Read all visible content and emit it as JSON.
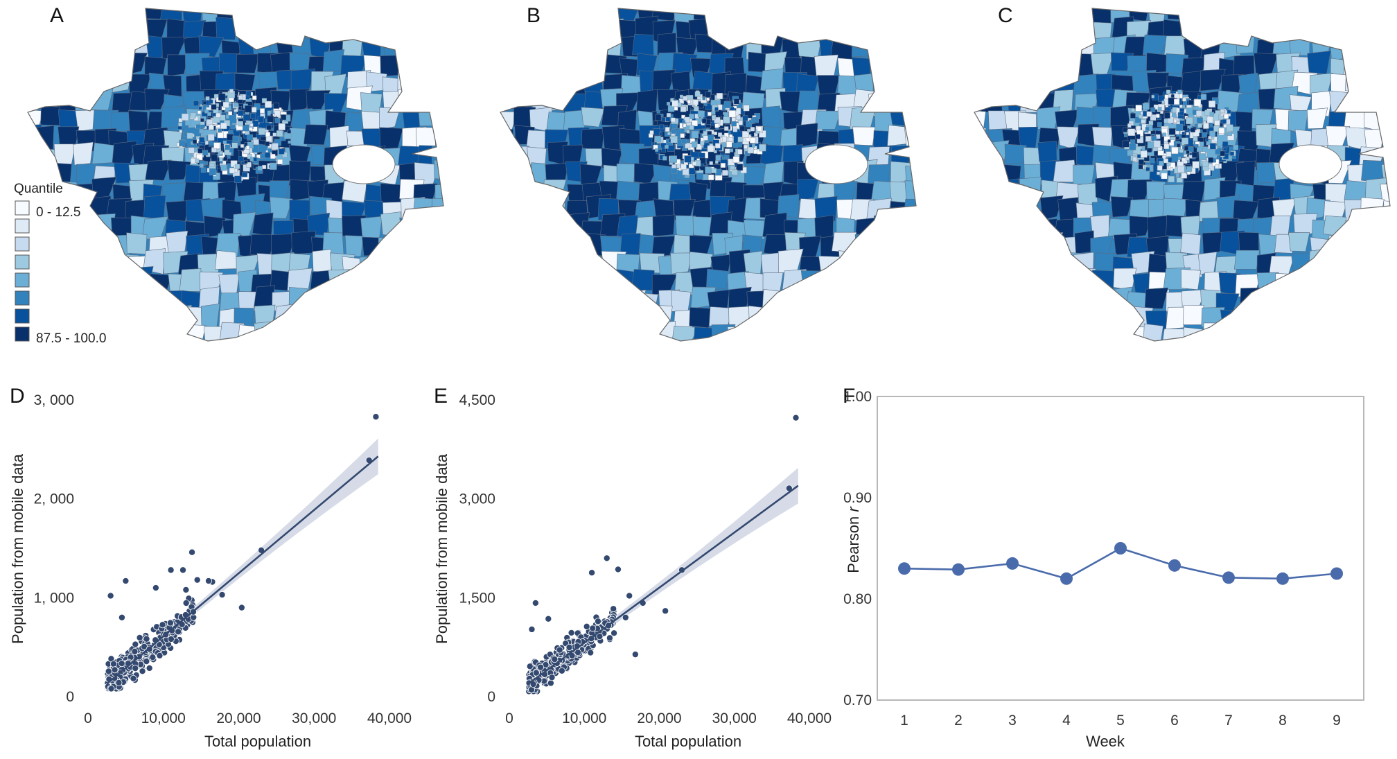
{
  "maps": {
    "labels": [
      "A",
      "B",
      "C"
    ],
    "legend": {
      "title": "Quantile",
      "low_label": "0 - 12.5",
      "high_label": "87.5 - 100.0",
      "colors": [
        "#f7fbff",
        "#deebf7",
        "#c6dbef",
        "#9ecae1",
        "#6baed6",
        "#3182bd",
        "#08519c",
        "#08306b"
      ]
    }
  },
  "chart_data": [
    {
      "panel": "D",
      "type": "scatter",
      "xlabel": "Total population",
      "ylabel": "Population from mobile data",
      "xlim": [
        0,
        40000
      ],
      "ylim": [
        0,
        3000
      ],
      "x_ticks": [
        "0",
        "10,000",
        "20,000",
        "30,000",
        "40,000"
      ],
      "y_ticks": [
        "0",
        "1, 000",
        "2, 000",
        "3, 000"
      ],
      "y_tick_values": [
        0,
        1000,
        2000,
        3000
      ],
      "fit_line": {
        "x": [
          2500,
          38500
        ],
        "y": [
          130,
          2430
        ]
      },
      "outliers": [
        {
          "x": 38200,
          "y": 2830
        },
        {
          "x": 37300,
          "y": 2390
        },
        {
          "x": 23000,
          "y": 1480
        },
        {
          "x": 17800,
          "y": 1030
        },
        {
          "x": 20400,
          "y": 900
        },
        {
          "x": 16500,
          "y": 1160
        },
        {
          "x": 16000,
          "y": 1170
        },
        {
          "x": 13800,
          "y": 1460
        },
        {
          "x": 11000,
          "y": 1280
        },
        {
          "x": 12600,
          "y": 1280
        },
        {
          "x": 9000,
          "y": 1100
        },
        {
          "x": 5000,
          "y": 1170
        },
        {
          "x": 3000,
          "y": 1020
        },
        {
          "x": 4500,
          "y": 800
        },
        {
          "x": 14500,
          "y": 1180
        },
        {
          "x": 13000,
          "y": 1080
        }
      ],
      "cloud": {
        "x_range": [
          2600,
          14000
        ],
        "slope": 0.064,
        "intercept": -40,
        "spread": 170,
        "count": 320
      }
    },
    {
      "panel": "E",
      "type": "scatter",
      "xlabel": "Total population",
      "ylabel": "Population from mobile data",
      "xlim": [
        0,
        40000
      ],
      "ylim": [
        0,
        4500
      ],
      "x_ticks": [
        "0",
        "10,000",
        "20,000",
        "30,000",
        "40,000"
      ],
      "y_ticks": [
        "0",
        "1,500",
        "3,000",
        "4,500"
      ],
      "y_tick_values": [
        0,
        1500,
        3000,
        4500
      ],
      "fit_line": {
        "x": [
          2500,
          38500
        ],
        "y": [
          190,
          3200
        ]
      },
      "outliers": [
        {
          "x": 38200,
          "y": 4230
        },
        {
          "x": 37300,
          "y": 3160
        },
        {
          "x": 23000,
          "y": 1920
        },
        {
          "x": 17800,
          "y": 1420
        },
        {
          "x": 20800,
          "y": 1300
        },
        {
          "x": 16800,
          "y": 640
        },
        {
          "x": 13000,
          "y": 2100
        },
        {
          "x": 14500,
          "y": 1930
        },
        {
          "x": 11000,
          "y": 1880
        },
        {
          "x": 16000,
          "y": 1530
        },
        {
          "x": 3500,
          "y": 1420
        },
        {
          "x": 3000,
          "y": 1020
        },
        {
          "x": 5200,
          "y": 1180
        },
        {
          "x": 15500,
          "y": 1200
        }
      ],
      "cloud": {
        "x_range": [
          2600,
          14000
        ],
        "slope": 0.085,
        "intercept": -20,
        "spread": 220,
        "count": 320
      }
    },
    {
      "panel": "F",
      "type": "line",
      "xlabel": "Week",
      "ylabel": "Pearson r",
      "x": [
        1,
        2,
        3,
        4,
        5,
        6,
        7,
        8,
        9
      ],
      "y": [
        0.83,
        0.829,
        0.835,
        0.82,
        0.85,
        0.833,
        0.821,
        0.82,
        0.825
      ],
      "xlim": [
        0.5,
        9.5
      ],
      "ylim": [
        0.7,
        1.0
      ],
      "y_ticks": [
        "0.70",
        "0.80",
        "0.90",
        "1.00"
      ],
      "y_tick_values": [
        0.7,
        0.8,
        0.9,
        1.0
      ],
      "x_ticks": [
        "1",
        "2",
        "3",
        "4",
        "5",
        "6",
        "7",
        "8",
        "9"
      ]
    }
  ],
  "colors": {
    "point": "#34496f",
    "line": "#34496f",
    "ci_band": "#d6dbe7",
    "f_line": "#4a6bab",
    "frame": "#b7b7b7"
  }
}
